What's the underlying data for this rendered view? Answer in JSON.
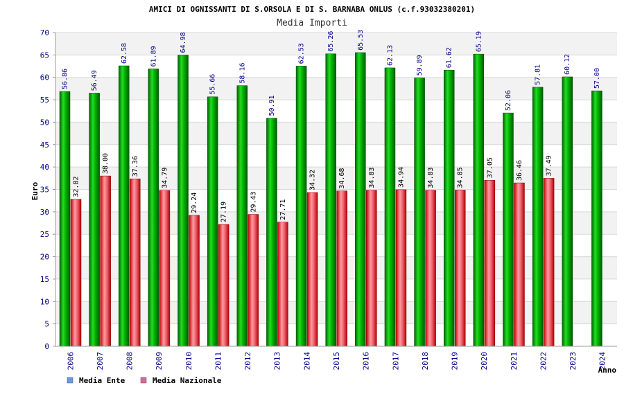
{
  "chart_data": {
    "type": "bar",
    "title": "AMICI DI OGNISSANTI DI S.ORSOLA E DI S. BARNABA ONLUS (c.f.93032380201)",
    "subtitle": "Media Importi",
    "xlabel": "Anno",
    "ylabel": "Euro",
    "ylim": [
      0,
      70
    ],
    "ytick_step": 5,
    "grid": true,
    "legend_position": "bottom-left",
    "categories": [
      "2006",
      "2007",
      "2008",
      "2009",
      "2010",
      "2011",
      "2012",
      "2013",
      "2014",
      "2015",
      "2016",
      "2017",
      "2018",
      "2019",
      "2020",
      "2021",
      "2022",
      "2023",
      "2024"
    ],
    "series": [
      {
        "name": "Media Ente",
        "color": "#00b000",
        "legend_color": "#6699ee",
        "values": [
          56.86,
          56.49,
          62.58,
          61.89,
          64.98,
          55.66,
          58.16,
          50.91,
          62.53,
          65.26,
          65.53,
          62.13,
          59.89,
          61.62,
          65.19,
          52.06,
          57.81,
          60.12,
          57.0
        ],
        "labels": [
          "56.86",
          "56.49",
          "62.58",
          "61.89",
          "64.98",
          "55.66",
          "58.16",
          "50.91",
          "62.53",
          "65.26",
          "65.53",
          "62.13",
          "59.89",
          "61.62",
          "65.19",
          "52.06",
          "57.81",
          "60.12",
          "57.00"
        ]
      },
      {
        "name": "Media Nazionale",
        "color": "#e83838",
        "legend_color": "#dd6699",
        "values": [
          32.82,
          38.0,
          37.36,
          34.79,
          29.24,
          27.19,
          29.43,
          27.71,
          34.32,
          34.68,
          34.83,
          34.94,
          34.83,
          34.85,
          37.05,
          36.46,
          37.49,
          null,
          null
        ],
        "labels": [
          "32.82",
          "38.00",
          "37.36",
          "34.79",
          "29.24",
          "27.19",
          "29.43",
          "27.71",
          "34.32",
          "34.68",
          "34.83",
          "34.94",
          "34.83",
          "34.85",
          "37.05",
          "36.46",
          "37.49",
          null,
          null
        ]
      }
    ]
  }
}
